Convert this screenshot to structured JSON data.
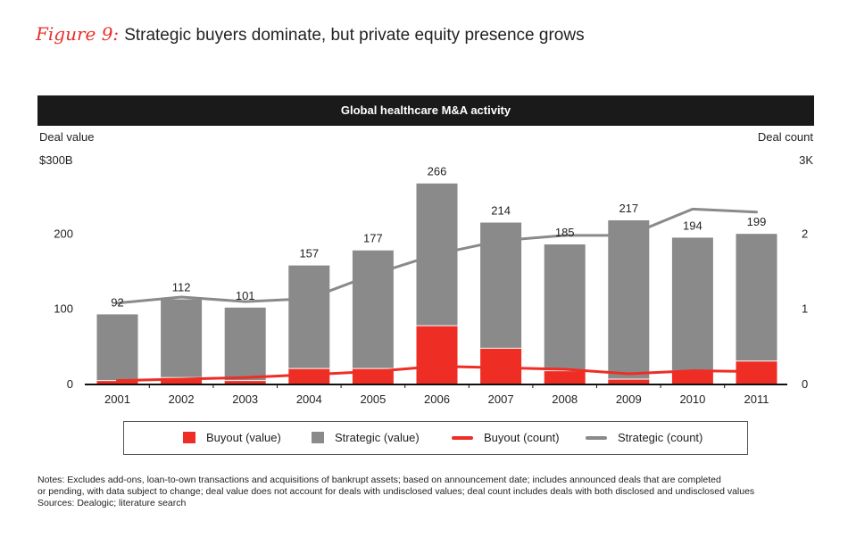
{
  "figure": {
    "label": "Figure 9:",
    "title": "Strategic buyers dominate, but private equity presence grows"
  },
  "banner": "Global healthcare M&A activity",
  "axes": {
    "left_title": "Deal value",
    "right_title": "Deal count",
    "left_unit_label": "$300B",
    "right_unit_label": "3K",
    "left_ticks": [
      "200",
      "100",
      "0"
    ],
    "right_ticks": [
      "2",
      "1",
      "0"
    ]
  },
  "legend": {
    "buyout_value": "Buyout (value)",
    "strategic_value": "Strategic (value)",
    "buyout_count": "Buyout (count)",
    "strategic_count": "Strategic (count)"
  },
  "colors": {
    "buyout": "#ee2e24",
    "strategic": "#8a8a8a",
    "strategic_line": "#8a8a8a",
    "buyout_line": "#ee2e24"
  },
  "notes": {
    "line1": "Notes: Excludes add-ons, loan-to-own transactions and acquisitions of bankrupt assets; based on announcement date; includes announced deals that are completed",
    "line2": "or pending, with data subject to change; deal value does not account for deals with undisclosed values; deal count includes deals with both disclosed and undisclosed values",
    "line3": "Sources: Dealogic; literature search"
  },
  "chart_data": {
    "type": "bar",
    "stacked": true,
    "title": "Global healthcare M&A activity",
    "xlabel": "",
    "ylabel": "Deal value",
    "ylim": [
      0,
      300
    ],
    "y2label": "Deal count",
    "y2lim": [
      0,
      3
    ],
    "categories": [
      "2001",
      "2002",
      "2003",
      "2004",
      "2005",
      "2006",
      "2007",
      "2008",
      "2009",
      "2010",
      "2011"
    ],
    "totals": [
      92,
      112,
      101,
      157,
      177,
      266,
      214,
      185,
      217,
      194,
      199
    ],
    "series": [
      {
        "name": "Buyout (value)",
        "kind": "bar",
        "axis": "left",
        "values": [
          4,
          8,
          4,
          20,
          20,
          77,
          47,
          17,
          6,
          17,
          30
        ]
      },
      {
        "name": "Strategic (value)",
        "kind": "bar",
        "axis": "left",
        "values": [
          88,
          104,
          97,
          137,
          157,
          189,
          167,
          168,
          211,
          177,
          169
        ]
      },
      {
        "name": "Buyout (count)",
        "kind": "line",
        "axis": "right",
        "values": [
          0.04,
          0.06,
          0.08,
          0.12,
          0.16,
          0.23,
          0.21,
          0.19,
          0.13,
          0.17,
          0.16
        ]
      },
      {
        "name": "Strategic (count)",
        "kind": "line",
        "axis": "right",
        "values": [
          1.07,
          1.15,
          1.09,
          1.13,
          1.45,
          1.72,
          1.9,
          1.97,
          1.97,
          2.32,
          2.28
        ]
      }
    ]
  }
}
